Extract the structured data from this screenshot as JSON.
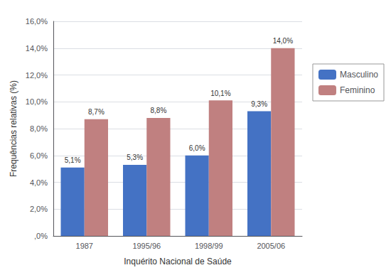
{
  "chart_data": {
    "type": "bar",
    "xlabel": "Inquérito Nacional de Saúde",
    "ylabel": "Frequências relativas (%)",
    "categories": [
      "1987",
      "1995/96",
      "1998/99",
      "2005/06"
    ],
    "series": [
      {
        "name": "Masculino",
        "color": "#4472C4",
        "values": [
          5.1,
          5.3,
          6.0,
          9.3
        ],
        "value_labels": [
          "5,1%",
          "5,3%",
          "6,0%",
          "9,3%"
        ]
      },
      {
        "name": "Feminino",
        "color": "#C08080",
        "values": [
          8.7,
          8.8,
          10.1,
          14.0
        ],
        "value_labels": [
          "8,7%",
          "8,8%",
          "10,1%",
          "14,0%"
        ]
      }
    ],
    "ylim": [
      0,
      16
    ],
    "yticks": [
      {
        "value": 0,
        "label": ",0%"
      },
      {
        "value": 2,
        "label": "2,0%"
      },
      {
        "value": 4,
        "label": "4,0%"
      },
      {
        "value": 6,
        "label": "6,0%"
      },
      {
        "value": 8,
        "label": "8,0%"
      },
      {
        "value": 10,
        "label": "10,0%"
      },
      {
        "value": 12,
        "label": "12,0%"
      },
      {
        "value": 14,
        "label": "14,0%"
      },
      {
        "value": 16,
        "label": "16,0%"
      }
    ],
    "grid": true,
    "legend": "right",
    "data_labels": true
  }
}
